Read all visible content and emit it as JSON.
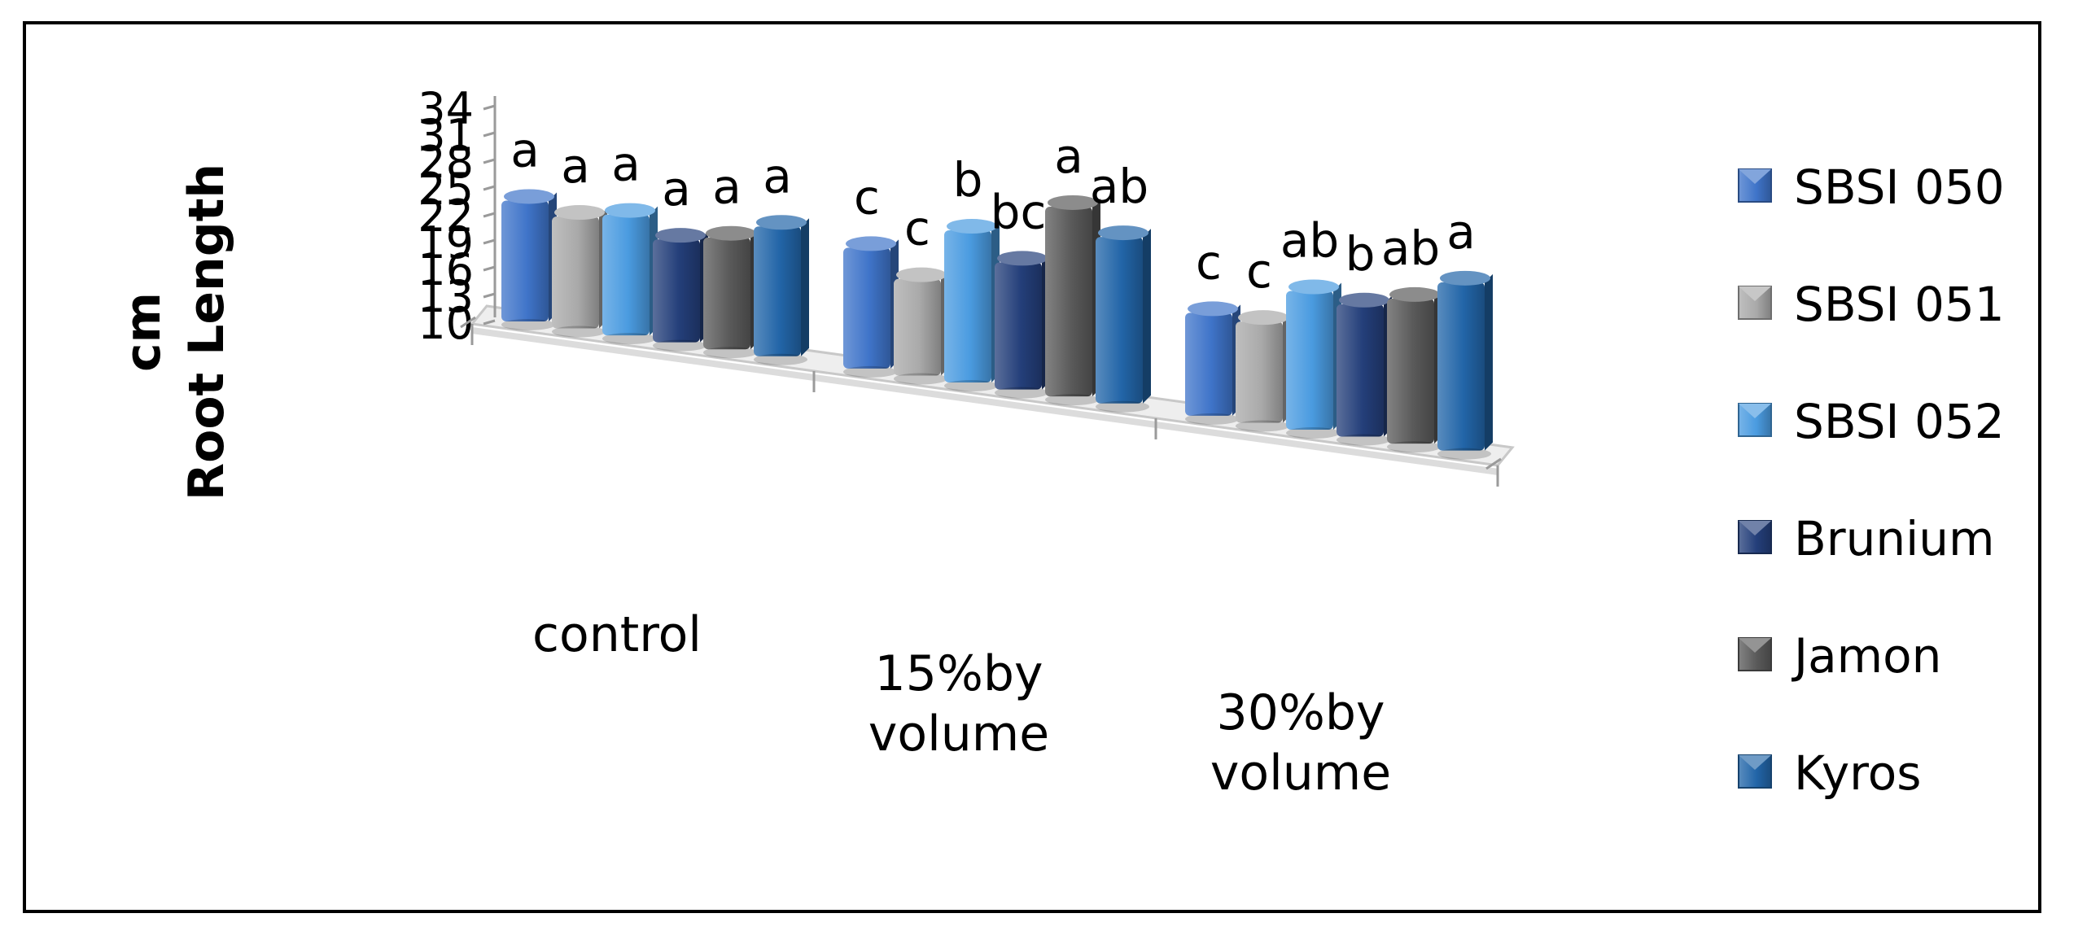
{
  "chart_data": {
    "type": "bar",
    "title": "",
    "xlabel": "",
    "ylabel": "Root Length",
    "ylabel_unit": "cm",
    "ylim": [
      10,
      34
    ],
    "yticks": [
      "10",
      "13",
      "16",
      "19",
      "22",
      "25",
      "28",
      "31",
      "34"
    ],
    "categories": [
      {
        "line1": "control",
        "line2": ""
      },
      {
        "line1": "15%by",
        "line2": "volume"
      },
      {
        "line1": "30%by",
        "line2": "volume"
      }
    ],
    "series": [
      {
        "name": "SBSI 050",
        "color": "#3f74c9",
        "values": [
          23.5,
          23.5,
          21.5
        ],
        "letters": [
          "a",
          "c",
          "c"
        ]
      },
      {
        "name": "SBSI 051",
        "color": "#a9a9a9",
        "values": [
          22.5,
          20.8,
          21.3
        ],
        "letters": [
          "a",
          "c",
          "c"
        ]
      },
      {
        "name": "SBSI 052",
        "color": "#4a9be0",
        "values": [
          23.5,
          27.0,
          25.5
        ],
        "letters": [
          "a",
          "b",
          "ab"
        ]
      },
      {
        "name": "Brunium",
        "color": "#243f7a",
        "values": [
          21.5,
          24.2,
          24.8
        ],
        "letters": [
          "a",
          "bc",
          "b"
        ]
      },
      {
        "name": "Jamon",
        "color": "#5a5a5a",
        "values": [
          22.5,
          31.2,
          26.2
        ],
        "letters": [
          "a",
          "a",
          "ab"
        ]
      },
      {
        "name": "Kyros",
        "color": "#2265a8",
        "values": [
          24.5,
          28.6,
          28.8
        ],
        "letters": [
          "a",
          "ab",
          "a"
        ]
      }
    ],
    "legend_position": "right"
  }
}
